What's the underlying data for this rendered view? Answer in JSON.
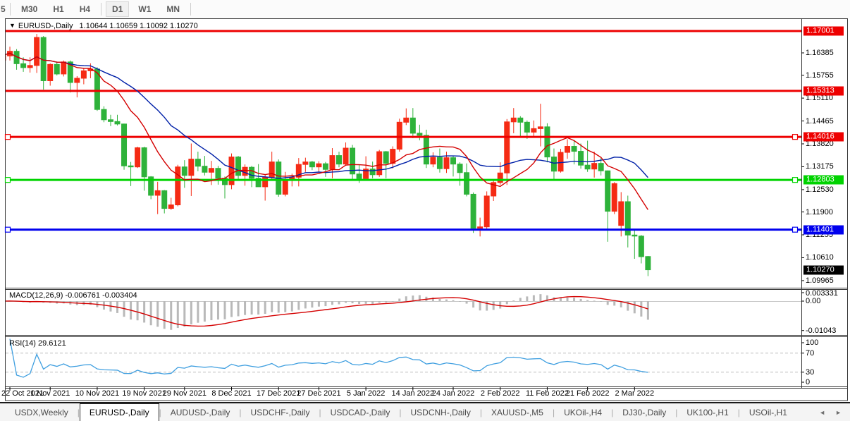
{
  "toolbar": {
    "clipped_button": "5",
    "timeframes": [
      "M30",
      "H1",
      "H4",
      "D1",
      "W1",
      "MN"
    ],
    "active_timeframe": "D1"
  },
  "title": {
    "dropdown_icon": "▼",
    "symbol": "EURUSD-,Daily",
    "ohlc_text": "1.10644 1.10659 1.10092 1.10270"
  },
  "indicators": {
    "macd": {
      "label": "MACD(12,26,9) -0.006761 -0.003404",
      "value": -0.006761,
      "signal": -0.003404,
      "axis_ticks": [
        "0.003331",
        "0.00",
        "-0.01043"
      ]
    },
    "rsi": {
      "label": "RSI(14) 29.6121",
      "value": 29.6121,
      "axis_ticks": [
        "100",
        "70",
        "30",
        "0"
      ],
      "levels": [
        70,
        30
      ]
    }
  },
  "price_axis": {
    "ticks": [
      "1.16385",
      "1.15755",
      "1.15110",
      "1.14465",
      "1.13820",
      "1.13175",
      "1.12530",
      "1.11900",
      "1.11255",
      "1.10610",
      "1.09965"
    ],
    "current_price_badge": {
      "text": "1.10270",
      "price": 1.1027,
      "bg": "#000000"
    }
  },
  "hlines": [
    {
      "label": "1.17001",
      "price": 1.17001,
      "color": "#ee0000",
      "selected": false
    },
    {
      "label": "1.15313",
      "price": 1.15313,
      "color": "#ee0000",
      "selected": false
    },
    {
      "label": "1.14016",
      "price": 1.14016,
      "color": "#ee0000",
      "selected": true
    },
    {
      "label": "1.12803",
      "price": 1.12803,
      "color": "#00d300",
      "selected": true
    },
    {
      "label": "1.11401",
      "price": 1.11401,
      "color": "#0000ee",
      "selected": true
    }
  ],
  "date_axis": [
    {
      "text": "22 Oct 2021",
      "bar": 1
    },
    {
      "text": "1 Nov 2021",
      "bar": 7
    },
    {
      "text": "10 Nov 2021",
      "bar": 14
    },
    {
      "text": "19 Nov 2021",
      "bar": 21
    },
    {
      "text": "29 Nov 2021",
      "bar": 27
    },
    {
      "text": "8 Dec 2021",
      "bar": 34
    },
    {
      "text": "17 Dec 2021",
      "bar": 41
    },
    {
      "text": "27 Dec 2021",
      "bar": 47
    },
    {
      "text": "5 Jan 2022",
      "bar": 54
    },
    {
      "text": "14 Jan 2022",
      "bar": 61
    },
    {
      "text": "24 Jan 2022",
      "bar": 67
    },
    {
      "text": "2 Feb 2022",
      "bar": 74
    },
    {
      "text": "11 Feb 2022",
      "bar": 81
    },
    {
      "text": "21 Feb 2022",
      "bar": 87
    },
    {
      "text": "2 Mar 2022",
      "bar": 94
    }
  ],
  "tabs": {
    "items": [
      "USDX,Weekly",
      "EURUSD-,Daily",
      "AUDUSD-,Daily",
      "USDCHF-,Daily",
      "USDCAD-,Daily",
      "USDCNH-,Daily",
      "XAUUSD-,M5",
      "UKOil-,H4",
      "DJ30-,Daily",
      "UK100-,H1",
      "USOil-,H1"
    ],
    "active": "EURUSD-,Daily",
    "separator": "|",
    "scroll_left_icon": "◄",
    "scroll_right_icon": "►"
  },
  "colors": {
    "bull_candle": "#f52b14",
    "bear_candle": "#2eb23a",
    "ma_fast": "#d40000",
    "ma_slow": "#0020a8",
    "macd_hist": "#b9b9b9",
    "macd_signal": "#d40000",
    "rsi_line": "#3f9fe0",
    "level_dash": "#bdbdbd"
  },
  "chart_data": {
    "type": "candlestick",
    "symbol": "EURUSD-",
    "timeframe": "Daily",
    "note_color_convention": "red body = up day, green body = down day",
    "ohlc_current": {
      "open": 1.10644,
      "high": 1.10659,
      "low": 1.10092,
      "close": 1.1027
    },
    "ma_fast_period": 10,
    "ma_slow_period": 20,
    "price_range_visible": [
      1.09965,
      1.17001
    ],
    "candles": [
      [
        1.1618,
        1.164,
        1.1609,
        1.1632
      ],
      [
        1.163,
        1.1656,
        1.1617,
        1.1643
      ],
      [
        1.1643,
        1.1649,
        1.1591,
        1.1608
      ],
      [
        1.1608,
        1.1626,
        1.1585,
        1.1597
      ],
      [
        1.1597,
        1.1626,
        1.1583,
        1.1603
      ],
      [
        1.1603,
        1.1692,
        1.1582,
        1.1682
      ],
      [
        1.1682,
        1.1686,
        1.1535,
        1.156
      ],
      [
        1.156,
        1.1609,
        1.1546,
        1.1606
      ],
      [
        1.1606,
        1.1614,
        1.1575,
        1.1579
      ],
      [
        1.1579,
        1.1617,
        1.1572,
        1.1613
      ],
      [
        1.1613,
        1.1617,
        1.1527,
        1.1555
      ],
      [
        1.1555,
        1.1573,
        1.1513,
        1.1567
      ],
      [
        1.1567,
        1.1595,
        1.155,
        1.1588
      ],
      [
        1.1588,
        1.1609,
        1.1567,
        1.1593
      ],
      [
        1.1593,
        1.1598,
        1.1475,
        1.1479
      ],
      [
        1.1479,
        1.1488,
        1.1443,
        1.145
      ],
      [
        1.145,
        1.1464,
        1.1432,
        1.1445
      ],
      [
        1.1445,
        1.1464,
        1.1434,
        1.1438
      ],
      [
        1.1438,
        1.1439,
        1.1309,
        1.132
      ],
      [
        1.132,
        1.1331,
        1.1263,
        1.1317
      ],
      [
        1.1317,
        1.1374,
        1.1314,
        1.1371
      ],
      [
        1.1371,
        1.1374,
        1.125,
        1.1289
      ],
      [
        1.1289,
        1.1291,
        1.1226,
        1.1237
      ],
      [
        1.1237,
        1.1275,
        1.1184,
        1.125
      ],
      [
        1.125,
        1.1252,
        1.1186,
        1.12
      ],
      [
        1.12,
        1.123,
        1.1196,
        1.121
      ],
      [
        1.121,
        1.1323,
        1.1206,
        1.1317
      ],
      [
        1.1317,
        1.1336,
        1.1258,
        1.1293
      ],
      [
        1.1293,
        1.1383,
        1.1235,
        1.1339
      ],
      [
        1.1339,
        1.136,
        1.1305,
        1.1319
      ],
      [
        1.1319,
        1.1348,
        1.1293,
        1.1302
      ],
      [
        1.1302,
        1.1334,
        1.1266,
        1.1313
      ],
      [
        1.1313,
        1.132,
        1.1267,
        1.1285
      ],
      [
        1.1285,
        1.129,
        1.1228,
        1.1267
      ],
      [
        1.1267,
        1.1355,
        1.1254,
        1.1345
      ],
      [
        1.1345,
        1.1348,
        1.128,
        1.1293
      ],
      [
        1.1293,
        1.1324,
        1.1264,
        1.1316
      ],
      [
        1.1316,
        1.132,
        1.126,
        1.1285
      ],
      [
        1.1285,
        1.1325,
        1.1261,
        1.1261
      ],
      [
        1.1261,
        1.1296,
        1.1222,
        1.1288
      ],
      [
        1.1288,
        1.136,
        1.128,
        1.1331
      ],
      [
        1.1331,
        1.1338,
        1.1233,
        1.124
      ],
      [
        1.124,
        1.1303,
        1.1234,
        1.128
      ],
      [
        1.128,
        1.1298,
        1.1262,
        1.1288
      ],
      [
        1.1288,
        1.1342,
        1.1262,
        1.1324
      ],
      [
        1.1324,
        1.1343,
        1.1303,
        1.1331
      ],
      [
        1.1331,
        1.1334,
        1.1308,
        1.1317
      ],
      [
        1.1317,
        1.1333,
        1.1303,
        1.1326
      ],
      [
        1.1326,
        1.1331,
        1.1289,
        1.131
      ],
      [
        1.131,
        1.137,
        1.1285,
        1.1349
      ],
      [
        1.1349,
        1.136,
        1.1316,
        1.1325
      ],
      [
        1.1325,
        1.1386,
        1.1321,
        1.137
      ],
      [
        1.137,
        1.1379,
        1.1279,
        1.1297
      ],
      [
        1.1297,
        1.1323,
        1.1272,
        1.1284
      ],
      [
        1.1284,
        1.1347,
        1.1284,
        1.1311
      ],
      [
        1.1311,
        1.1332,
        1.1285,
        1.1295
      ],
      [
        1.1295,
        1.1365,
        1.1289,
        1.136
      ],
      [
        1.136,
        1.1362,
        1.1285,
        1.1327
      ],
      [
        1.1327,
        1.1375,
        1.1313,
        1.1367
      ],
      [
        1.1367,
        1.1453,
        1.136,
        1.1443
      ],
      [
        1.1443,
        1.1482,
        1.1435,
        1.1455
      ],
      [
        1.1455,
        1.1483,
        1.1398,
        1.1412
      ],
      [
        1.1412,
        1.1436,
        1.1392,
        1.1406
      ],
      [
        1.1406,
        1.1422,
        1.1314,
        1.1325
      ],
      [
        1.1325,
        1.1358,
        1.1316,
        1.1344
      ],
      [
        1.1344,
        1.1369,
        1.1301,
        1.1312
      ],
      [
        1.1312,
        1.136,
        1.13,
        1.1343
      ],
      [
        1.1343,
        1.1349,
        1.129,
        1.1325
      ],
      [
        1.1325,
        1.133,
        1.1264,
        1.1301
      ],
      [
        1.1301,
        1.1327,
        1.1234,
        1.124
      ],
      [
        1.124,
        1.1245,
        1.1131,
        1.1144
      ],
      [
        1.1144,
        1.1174,
        1.1121,
        1.1148
      ],
      [
        1.1148,
        1.1248,
        1.114,
        1.1235
      ],
      [
        1.1235,
        1.1279,
        1.1221,
        1.1273
      ],
      [
        1.1273,
        1.133,
        1.1267,
        1.13
      ],
      [
        1.13,
        1.1452,
        1.1266,
        1.1444
      ],
      [
        1.1444,
        1.1483,
        1.1412,
        1.1455
      ],
      [
        1.1455,
        1.146,
        1.14,
        1.1443
      ],
      [
        1.1443,
        1.1448,
        1.1396,
        1.1415
      ],
      [
        1.1415,
        1.1448,
        1.1403,
        1.1425
      ],
      [
        1.1425,
        1.1495,
        1.1375,
        1.143
      ],
      [
        1.143,
        1.144,
        1.133,
        1.1345
      ],
      [
        1.1345,
        1.1369,
        1.1278,
        1.1305
      ],
      [
        1.1305,
        1.1368,
        1.1301,
        1.1358
      ],
      [
        1.1358,
        1.1395,
        1.134,
        1.1375
      ],
      [
        1.1375,
        1.1393,
        1.1324,
        1.1361
      ],
      [
        1.1361,
        1.1383,
        1.1312,
        1.1322
      ],
      [
        1.1322,
        1.1391,
        1.1303,
        1.1311
      ],
      [
        1.1311,
        1.136,
        1.1287,
        1.1327
      ],
      [
        1.1327,
        1.1343,
        1.1293,
        1.1306
      ],
      [
        1.1306,
        1.1307,
        1.1106,
        1.1192
      ],
      [
        1.1192,
        1.1274,
        1.1184,
        1.127
      ],
      [
        1.1152,
        1.1246,
        1.1121,
        1.1219
      ],
      [
        1.1219,
        1.1236,
        1.109,
        1.1125
      ],
      [
        1.1125,
        1.1138,
        1.1058,
        1.1122
      ],
      [
        1.1122,
        1.1125,
        1.1045,
        1.1064
      ],
      [
        1.10644,
        1.10659,
        1.10092,
        1.1027
      ]
    ]
  }
}
